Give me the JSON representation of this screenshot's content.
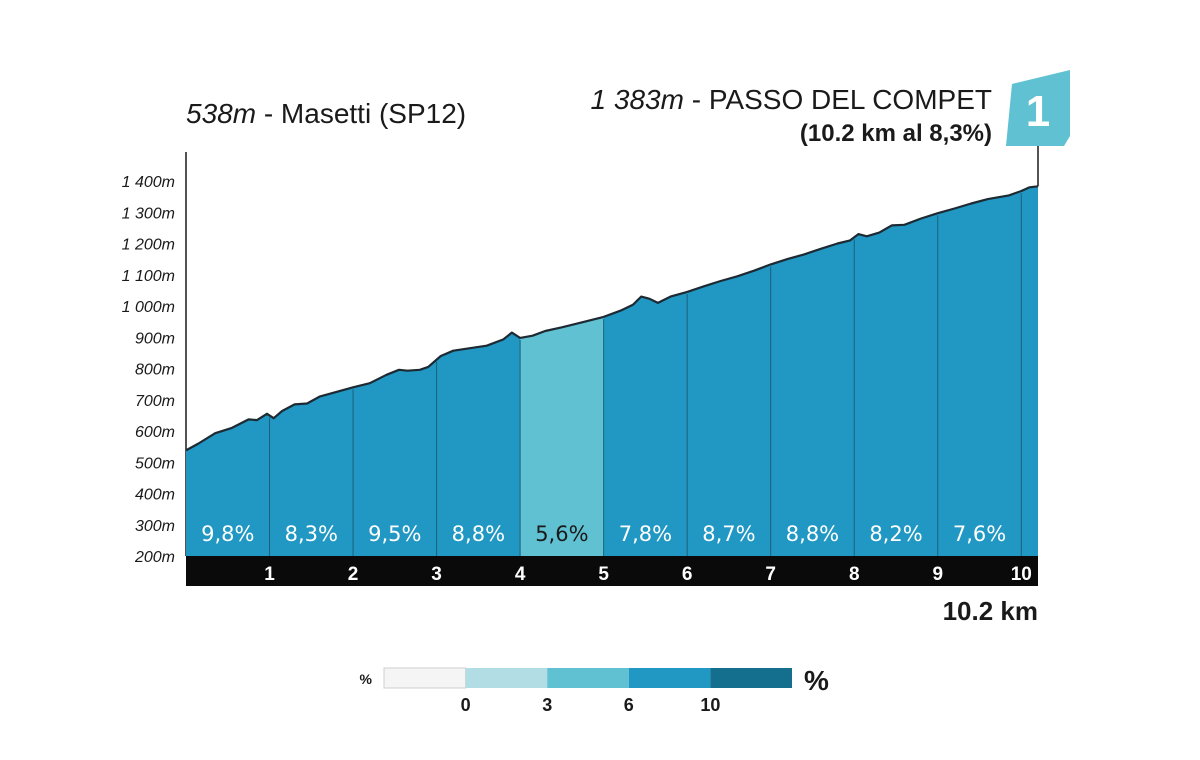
{
  "header": {
    "start_elev": "538m",
    "start_name": "- Masetti (SP12)",
    "end_elev": "1 383m",
    "end_name": "- PASSO DEL COMPET",
    "end_summary": "(10.2 km al 8,3%)",
    "climb_badge": "1",
    "total_distance": "10.2 km"
  },
  "colors": {
    "grade_0_3": "#b3dde4",
    "grade_3_6": "#5fc1d1",
    "grade_6_10": "#2098c3",
    "grade_10_plus": "#146e8d",
    "grade_below_0": "#f5f5f5",
    "km_bar": "#0a0a0a",
    "profile_line": "#1e2a33"
  },
  "chart_data": {
    "type": "area",
    "title": "",
    "xlabel": "",
    "ylabel": "",
    "xlim": [
      0,
      10.2
    ],
    "ylim": [
      200,
      1400
    ],
    "y_ticks": [
      {
        "value": 1400,
        "label": "1 400m"
      },
      {
        "value": 1300,
        "label": "1 300m"
      },
      {
        "value": 1200,
        "label": "1 200m"
      },
      {
        "value": 1100,
        "label": "1 100m"
      },
      {
        "value": 1000,
        "label": "1 000m"
      },
      {
        "value": 900,
        "label": "900m"
      },
      {
        "value": 800,
        "label": "800m"
      },
      {
        "value": 700,
        "label": "700m"
      },
      {
        "value": 600,
        "label": "600m"
      },
      {
        "value": 500,
        "label": "500m"
      },
      {
        "value": 400,
        "label": "400m"
      },
      {
        "value": 300,
        "label": "300m"
      },
      {
        "value": 200,
        "label": "200m"
      }
    ],
    "x_ticks": [
      "1",
      "2",
      "3",
      "4",
      "5",
      "6",
      "7",
      "8",
      "9",
      "10"
    ],
    "profile": [
      [
        0,
        538
      ],
      [
        0.15,
        560
      ],
      [
        0.35,
        593
      ],
      [
        0.55,
        610
      ],
      [
        0.75,
        637
      ],
      [
        0.85,
        635
      ],
      [
        0.97,
        655
      ],
      [
        1.05,
        641
      ],
      [
        1.15,
        664
      ],
      [
        1.3,
        685
      ],
      [
        1.45,
        688
      ],
      [
        1.6,
        710
      ],
      [
        1.8,
        725
      ],
      [
        2.0,
        740
      ],
      [
        2.2,
        753
      ],
      [
        2.4,
        780
      ],
      [
        2.55,
        796
      ],
      [
        2.65,
        793
      ],
      [
        2.8,
        796
      ],
      [
        2.9,
        805
      ],
      [
        3.05,
        840
      ],
      [
        3.2,
        857
      ],
      [
        3.4,
        865
      ],
      [
        3.6,
        873
      ],
      [
        3.8,
        893
      ],
      [
        3.9,
        915
      ],
      [
        4.0,
        898
      ],
      [
        4.15,
        905
      ],
      [
        4.3,
        920
      ],
      [
        4.5,
        932
      ],
      [
        4.7,
        945
      ],
      [
        5.0,
        965
      ],
      [
        5.2,
        985
      ],
      [
        5.35,
        1004
      ],
      [
        5.45,
        1030
      ],
      [
        5.55,
        1023
      ],
      [
        5.65,
        1010
      ],
      [
        5.8,
        1030
      ],
      [
        6.0,
        1045
      ],
      [
        6.2,
        1063
      ],
      [
        6.4,
        1080
      ],
      [
        6.6,
        1095
      ],
      [
        6.8,
        1113
      ],
      [
        7.0,
        1133
      ],
      [
        7.2,
        1150
      ],
      [
        7.4,
        1165
      ],
      [
        7.6,
        1183
      ],
      [
        7.8,
        1200
      ],
      [
        7.95,
        1210
      ],
      [
        8.05,
        1230
      ],
      [
        8.15,
        1223
      ],
      [
        8.3,
        1235
      ],
      [
        8.45,
        1258
      ],
      [
        8.6,
        1260
      ],
      [
        8.8,
        1280
      ],
      [
        9.0,
        1297
      ],
      [
        9.2,
        1312
      ],
      [
        9.4,
        1328
      ],
      [
        9.6,
        1342
      ],
      [
        9.85,
        1354
      ],
      [
        10.0,
        1368
      ],
      [
        10.1,
        1380
      ],
      [
        10.2,
        1383
      ]
    ],
    "segments": [
      {
        "from": 0,
        "to": 1,
        "grade": 9.8,
        "label": "9,8%"
      },
      {
        "from": 1,
        "to": 2,
        "grade": 8.3,
        "label": "8,3%"
      },
      {
        "from": 2,
        "to": 3,
        "grade": 9.5,
        "label": "9,5%"
      },
      {
        "from": 3,
        "to": 4,
        "grade": 8.8,
        "label": "8,8%"
      },
      {
        "from": 4,
        "to": 5,
        "grade": 5.6,
        "label": "5,6%"
      },
      {
        "from": 5,
        "to": 6,
        "grade": 7.8,
        "label": "7,8%"
      },
      {
        "from": 6,
        "to": 7,
        "grade": 8.7,
        "label": "8,7%"
      },
      {
        "from": 7,
        "to": 8,
        "grade": 8.8,
        "label": "8,8%"
      },
      {
        "from": 8,
        "to": 9,
        "grade": 8.2,
        "label": "8,2%"
      },
      {
        "from": 9,
        "to": 10,
        "grade": 7.6,
        "label": "7,6%"
      },
      {
        "from": 10,
        "to": 10.2,
        "grade": 8.3,
        "label": ""
      }
    ],
    "legend": {
      "unit_small": "%",
      "unit_large": "%",
      "bins": [
        {
          "color_key": "grade_below_0"
        },
        {
          "color_key": "grade_0_3"
        },
        {
          "color_key": "grade_3_6"
        },
        {
          "color_key": "grade_6_10"
        },
        {
          "color_key": "grade_10_plus"
        }
      ],
      "tick_labels": [
        "0",
        "3",
        "6",
        "10"
      ]
    }
  }
}
